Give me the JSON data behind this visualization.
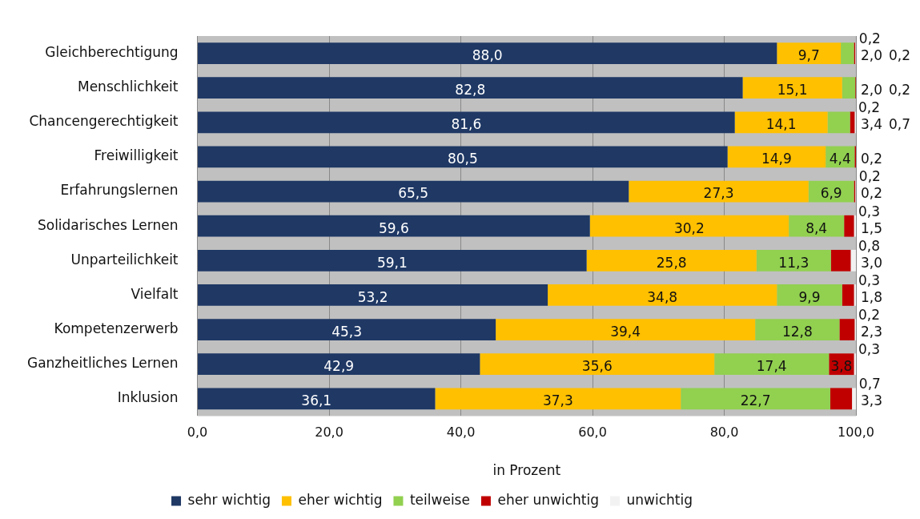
{
  "chart_data": {
    "type": "bar",
    "orientation": "horizontal",
    "stacked": true,
    "xlabel": "in Prozent",
    "categories": [
      "Gleichberechtigung",
      "Menschlichkeit",
      "Chancengerechtigkeit",
      "Freiwilligkeit",
      "Erfahrungslernen",
      "Solidarisches Lernen",
      "Unparteilichkeit",
      "Vielfalt",
      "Kompetenzerwerb",
      "Ganzheitliches Lernen",
      "Inklusion"
    ],
    "series": [
      {
        "name": "sehr wichtig",
        "color": "#1f3864",
        "values": [
          88.0,
          82.8,
          81.6,
          80.5,
          65.5,
          59.6,
          59.1,
          53.2,
          45.3,
          42.9,
          36.1
        ],
        "value_labels": [
          "88,0",
          "82,8",
          "81,6",
          "80,5",
          "65,5",
          "59,6",
          "59,1",
          "53,2",
          "45,3",
          "42,9",
          "36,1"
        ]
      },
      {
        "name": "eher wichtig",
        "color": "#ffc000",
        "values": [
          9.7,
          15.1,
          14.1,
          14.9,
          27.3,
          30.2,
          25.8,
          34.8,
          39.4,
          35.6,
          37.3
        ],
        "value_labels": [
          "9,7",
          "15,1",
          "14,1",
          "14,9",
          "27,3",
          "30,2",
          "25,8",
          "34,8",
          "39,4",
          "35,6",
          "37,3"
        ]
      },
      {
        "name": "teilweise",
        "color": "#92d050",
        "values": [
          2.0,
          2.0,
          3.4,
          4.4,
          6.9,
          8.4,
          11.3,
          9.9,
          12.8,
          17.4,
          22.7
        ],
        "value_labels": [
          "2,0",
          "2,0",
          "3,4",
          "4,4",
          "6,9",
          "8,4",
          "11,3",
          "9,9",
          "12,8",
          "17,4",
          "22,7"
        ]
      },
      {
        "name": "eher unwichtig",
        "color": "#c00000",
        "values": [
          0.2,
          0.2,
          0.7,
          0.2,
          0.2,
          1.5,
          3.0,
          1.8,
          2.3,
          3.8,
          3.3
        ],
        "value_labels": [
          "0,2",
          "0,2",
          "0,7",
          "0,2",
          "0,2",
          "1,5",
          "3,0",
          "1,8",
          "2,3",
          "3,8",
          "3,3"
        ]
      },
      {
        "name": "unwichtig",
        "color": "#f2f2f2",
        "values": [
          0.2,
          null,
          0.2,
          null,
          0.2,
          0.3,
          0.8,
          0.3,
          0.2,
          0.3,
          0.7
        ],
        "value_labels": [
          "0,2",
          null,
          "0,2",
          null,
          "0,2",
          "0,3",
          "0,8",
          "0,3",
          "0,2",
          "0,3",
          "0,7"
        ]
      }
    ],
    "xlim": [
      0,
      100
    ],
    "xticks": [
      {
        "value": 0,
        "label": "0,0"
      },
      {
        "value": 20,
        "label": "20,0"
      },
      {
        "value": 40,
        "label": "40,0"
      },
      {
        "value": 60,
        "label": "60,0"
      },
      {
        "value": 80,
        "label": "80,0"
      },
      {
        "value": 100,
        "label": "100,0"
      }
    ],
    "grid": "x",
    "legend": "bottom"
  }
}
